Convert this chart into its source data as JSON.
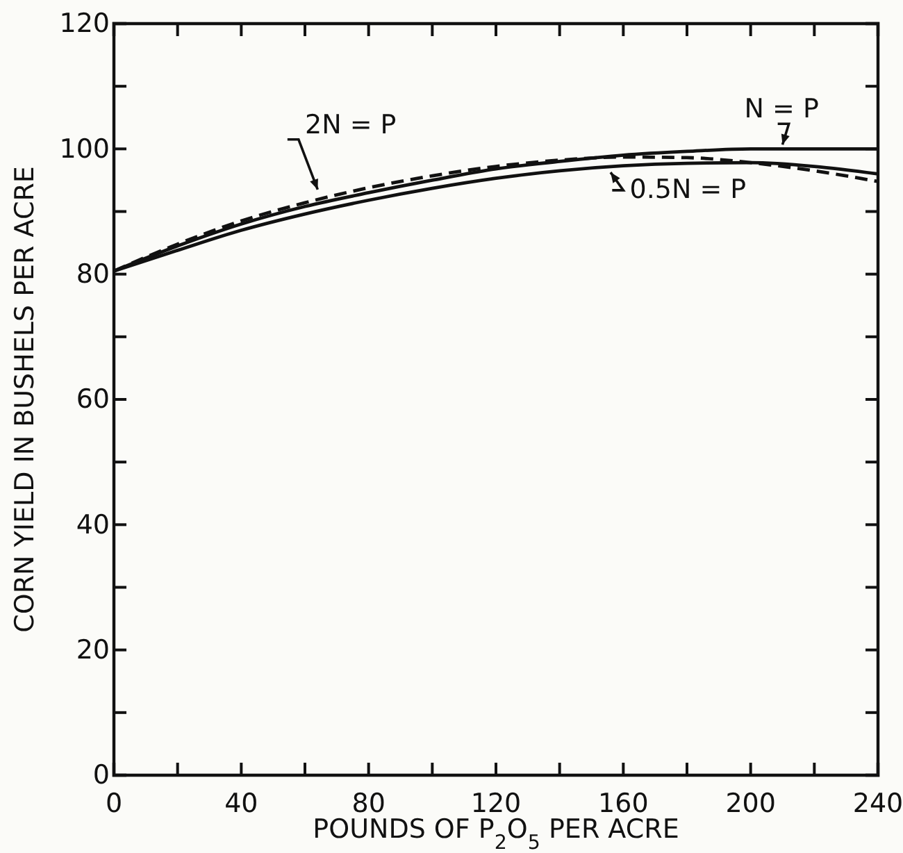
{
  "chart_data": {
    "type": "line",
    "xlabel": "POUNDS OF P$_{2}$O$_{5}$ PER ACRE",
    "ylabel": "CORN YIELD IN BUSHELS PER ACRE",
    "x": [
      0,
      20,
      40,
      60,
      80,
      100,
      120,
      140,
      160,
      180,
      200,
      220,
      240
    ],
    "xlim": [
      0,
      240
    ],
    "xticks": [
      0,
      {
        "value": 20,
        "label": null
      },
      40,
      {
        "value": 60,
        "label": null
      },
      80,
      {
        "value": 100,
        "label": null
      },
      120,
      {
        "value": 140,
        "label": null
      },
      160,
      {
        "value": 180,
        "label": null
      },
      200,
      {
        "value": 220,
        "label": null
      },
      240
    ],
    "ylim": [
      0,
      120
    ],
    "yticks": [
      0,
      {
        "value": 10,
        "label": null
      },
      20,
      {
        "value": 30,
        "label": null
      },
      40,
      {
        "value": 50,
        "label": null
      },
      60,
      {
        "value": 70,
        "label": null
      },
      80,
      {
        "value": 90,
        "label": null
      },
      100,
      {
        "value": 110,
        "label": null
      },
      120
    ],
    "grid": false,
    "marker": "none",
    "series": [
      {
        "name": "N = P",
        "color": "#111111",
        "line_style": "solid",
        "values": [
          80.5,
          84.5,
          88,
          90.8,
          93,
          95,
          96.8,
          98,
          99,
          99.6,
          100,
          100,
          100
        ]
      },
      {
        "name": "0.5N = P",
        "color": "#111111",
        "line_style": "solid",
        "values": [
          80.5,
          83.8,
          87,
          89.6,
          91.8,
          93.7,
          95.3,
          96.5,
          97.3,
          97.7,
          97.8,
          97.2,
          96
        ]
      },
      {
        "name": "2N = P",
        "color": "#111111",
        "line_style": "dashed",
        "values": [
          80.5,
          84.8,
          88.5,
          91.4,
          93.8,
          95.7,
          97.2,
          98.2,
          98.7,
          98.6,
          97.8,
          96.5,
          94.8
        ]
      }
    ]
  }
}
